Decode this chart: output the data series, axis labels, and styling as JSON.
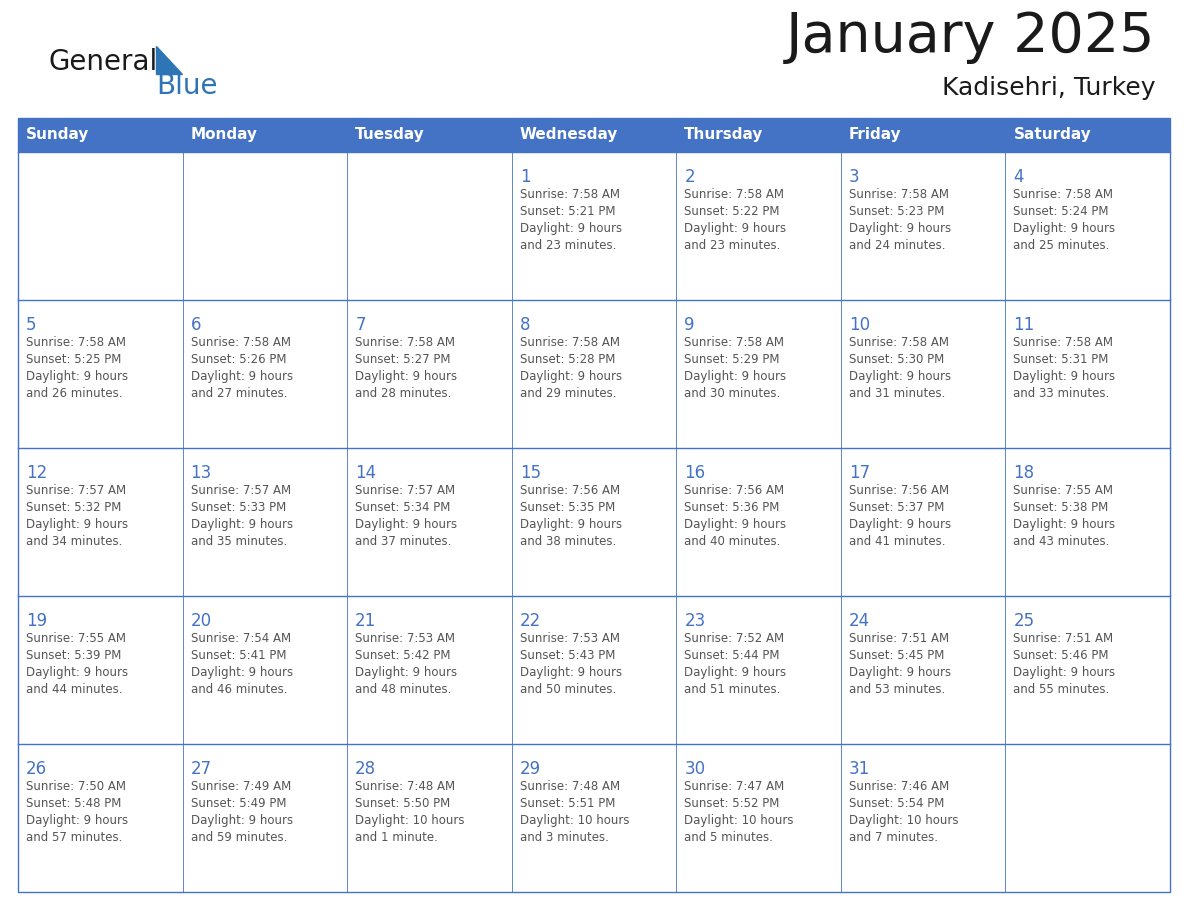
{
  "title": "January 2025",
  "subtitle": "Kadisehri, Turkey",
  "header_color": "#4472C4",
  "header_text_color": "#FFFFFF",
  "cell_bg_color": "#FFFFFF",
  "cell_border_color": "#4472C4",
  "day_number_color": "#4472C4",
  "info_text_color": "#555555",
  "days_of_week": [
    "Sunday",
    "Monday",
    "Tuesday",
    "Wednesday",
    "Thursday",
    "Friday",
    "Saturday"
  ],
  "weeks": [
    [
      {
        "day": "",
        "sunrise": "",
        "sunset": "",
        "daylight_hours": "",
        "daylight_minutes": ""
      },
      {
        "day": "",
        "sunrise": "",
        "sunset": "",
        "daylight_hours": "",
        "daylight_minutes": ""
      },
      {
        "day": "",
        "sunrise": "",
        "sunset": "",
        "daylight_hours": "",
        "daylight_minutes": ""
      },
      {
        "day": "1",
        "sunrise": "7:58 AM",
        "sunset": "5:21 PM",
        "daylight_hours": "9",
        "daylight_minutes": "23"
      },
      {
        "day": "2",
        "sunrise": "7:58 AM",
        "sunset": "5:22 PM",
        "daylight_hours": "9",
        "daylight_minutes": "23"
      },
      {
        "day": "3",
        "sunrise": "7:58 AM",
        "sunset": "5:23 PM",
        "daylight_hours": "9",
        "daylight_minutes": "24"
      },
      {
        "day": "4",
        "sunrise": "7:58 AM",
        "sunset": "5:24 PM",
        "daylight_hours": "9",
        "daylight_minutes": "25"
      }
    ],
    [
      {
        "day": "5",
        "sunrise": "7:58 AM",
        "sunset": "5:25 PM",
        "daylight_hours": "9",
        "daylight_minutes": "26"
      },
      {
        "day": "6",
        "sunrise": "7:58 AM",
        "sunset": "5:26 PM",
        "daylight_hours": "9",
        "daylight_minutes": "27"
      },
      {
        "day": "7",
        "sunrise": "7:58 AM",
        "sunset": "5:27 PM",
        "daylight_hours": "9",
        "daylight_minutes": "28"
      },
      {
        "day": "8",
        "sunrise": "7:58 AM",
        "sunset": "5:28 PM",
        "daylight_hours": "9",
        "daylight_minutes": "29"
      },
      {
        "day": "9",
        "sunrise": "7:58 AM",
        "sunset": "5:29 PM",
        "daylight_hours": "9",
        "daylight_minutes": "30"
      },
      {
        "day": "10",
        "sunrise": "7:58 AM",
        "sunset": "5:30 PM",
        "daylight_hours": "9",
        "daylight_minutes": "31"
      },
      {
        "day": "11",
        "sunrise": "7:58 AM",
        "sunset": "5:31 PM",
        "daylight_hours": "9",
        "daylight_minutes": "33"
      }
    ],
    [
      {
        "day": "12",
        "sunrise": "7:57 AM",
        "sunset": "5:32 PM",
        "daylight_hours": "9",
        "daylight_minutes": "34"
      },
      {
        "day": "13",
        "sunrise": "7:57 AM",
        "sunset": "5:33 PM",
        "daylight_hours": "9",
        "daylight_minutes": "35"
      },
      {
        "day": "14",
        "sunrise": "7:57 AM",
        "sunset": "5:34 PM",
        "daylight_hours": "9",
        "daylight_minutes": "37"
      },
      {
        "day": "15",
        "sunrise": "7:56 AM",
        "sunset": "5:35 PM",
        "daylight_hours": "9",
        "daylight_minutes": "38"
      },
      {
        "day": "16",
        "sunrise": "7:56 AM",
        "sunset": "5:36 PM",
        "daylight_hours": "9",
        "daylight_minutes": "40"
      },
      {
        "day": "17",
        "sunrise": "7:56 AM",
        "sunset": "5:37 PM",
        "daylight_hours": "9",
        "daylight_minutes": "41"
      },
      {
        "day": "18",
        "sunrise": "7:55 AM",
        "sunset": "5:38 PM",
        "daylight_hours": "9",
        "daylight_minutes": "43"
      }
    ],
    [
      {
        "day": "19",
        "sunrise": "7:55 AM",
        "sunset": "5:39 PM",
        "daylight_hours": "9",
        "daylight_minutes": "44"
      },
      {
        "day": "20",
        "sunrise": "7:54 AM",
        "sunset": "5:41 PM",
        "daylight_hours": "9",
        "daylight_minutes": "46"
      },
      {
        "day": "21",
        "sunrise": "7:53 AM",
        "sunset": "5:42 PM",
        "daylight_hours": "9",
        "daylight_minutes": "48"
      },
      {
        "day": "22",
        "sunrise": "7:53 AM",
        "sunset": "5:43 PM",
        "daylight_hours": "9",
        "daylight_minutes": "50"
      },
      {
        "day": "23",
        "sunrise": "7:52 AM",
        "sunset": "5:44 PM",
        "daylight_hours": "9",
        "daylight_minutes": "51"
      },
      {
        "day": "24",
        "sunrise": "7:51 AM",
        "sunset": "5:45 PM",
        "daylight_hours": "9",
        "daylight_minutes": "53"
      },
      {
        "day": "25",
        "sunrise": "7:51 AM",
        "sunset": "5:46 PM",
        "daylight_hours": "9",
        "daylight_minutes": "55"
      }
    ],
    [
      {
        "day": "26",
        "sunrise": "7:50 AM",
        "sunset": "5:48 PM",
        "daylight_hours": "9",
        "daylight_minutes": "57"
      },
      {
        "day": "27",
        "sunrise": "7:49 AM",
        "sunset": "5:49 PM",
        "daylight_hours": "9",
        "daylight_minutes": "59"
      },
      {
        "day": "28",
        "sunrise": "7:48 AM",
        "sunset": "5:50 PM",
        "daylight_hours": "10",
        "daylight_minutes": "1"
      },
      {
        "day": "29",
        "sunrise": "7:48 AM",
        "sunset": "5:51 PM",
        "daylight_hours": "10",
        "daylight_minutes": "3"
      },
      {
        "day": "30",
        "sunrise": "7:47 AM",
        "sunset": "5:52 PM",
        "daylight_hours": "10",
        "daylight_minutes": "5"
      },
      {
        "day": "31",
        "sunrise": "7:46 AM",
        "sunset": "5:54 PM",
        "daylight_hours": "10",
        "daylight_minutes": "7"
      },
      {
        "day": "",
        "sunrise": "",
        "sunset": "",
        "daylight_hours": "",
        "daylight_minutes": ""
      }
    ]
  ],
  "logo_text_general": "General",
  "logo_text_blue": "Blue",
  "logo_triangle_color": "#2E75B6",
  "logo_dark_color": "#1a1a1a"
}
